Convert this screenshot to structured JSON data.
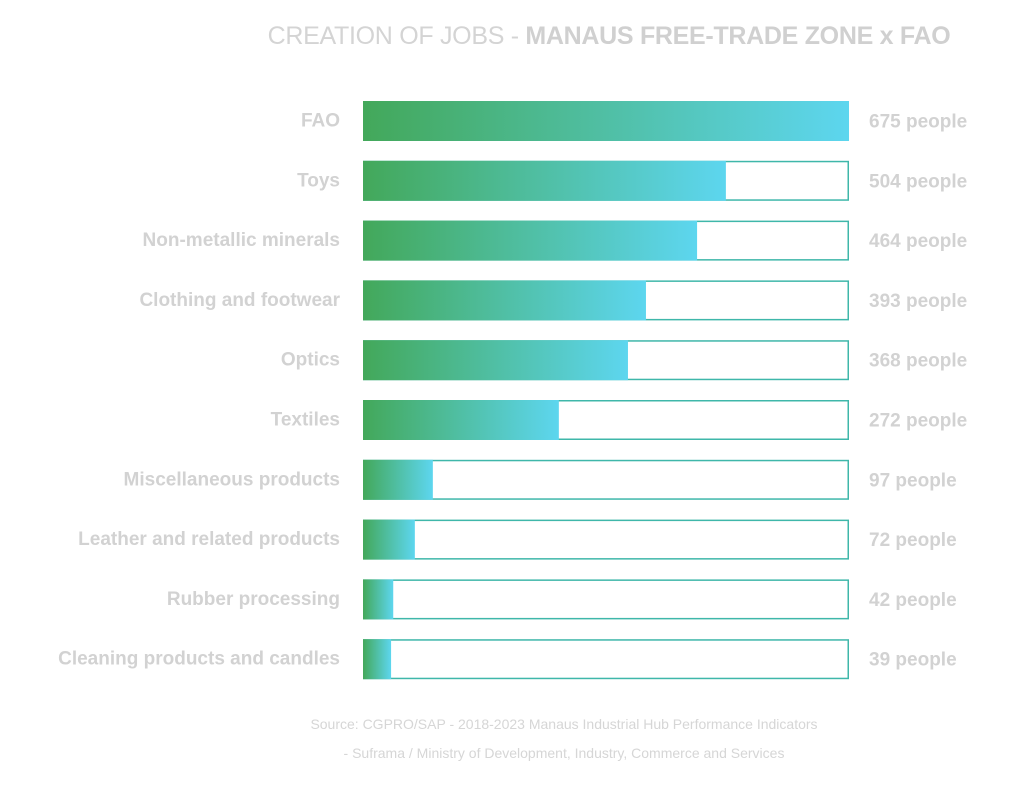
{
  "title": {
    "light": "CREATION OF JOBS - ",
    "bold": "MANAUS FREE-TRADE ZONE  x  FAO"
  },
  "chart_data": {
    "type": "bar",
    "orientation": "horizontal",
    "title": "CREATION OF JOBS - MANAUS FREE-TRADE ZONE  x  FAO",
    "categories": [
      "FAO",
      "Toys",
      "Non-metallic minerals",
      "Clothing and footwear",
      "Optics",
      "Textiles",
      "Miscellaneous products",
      "Leather and related products",
      "Rubber processing",
      "Cleaning products and candles"
    ],
    "values": [
      675,
      504,
      464,
      393,
      368,
      272,
      97,
      72,
      42,
      39
    ],
    "value_labels": [
      "675 people",
      "504 people",
      "464 people",
      "393 people",
      "368 people",
      "272 people",
      "97 people",
      "72 people",
      "42 people",
      "39 people"
    ],
    "xlim": [
      0,
      675
    ],
    "grid": false,
    "legend": "none",
    "colors": {
      "gradient_start": "#43a85a",
      "gradient_end": "#5dd6ef",
      "track_border": "#3fb7aa",
      "label": "#d2d2d2"
    }
  },
  "source": {
    "line1": "Source: CGPRO/SAP - 2018-2023 Manaus Industrial Hub Performance Indicators",
    "line2": "- Suframa / Ministry of Development, Industry, Commerce and Services"
  }
}
